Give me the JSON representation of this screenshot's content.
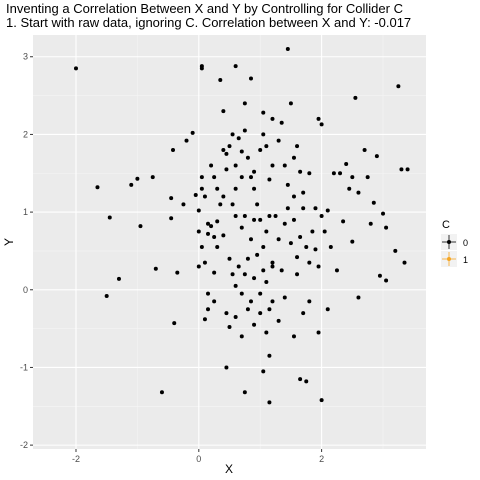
{
  "chart_data": {
    "type": "scatter",
    "title": "Inventing a Correlation Between X and Y by Controlling for Collider C",
    "subtitle": "1. Start with raw data, ignoring C. Correlation between X and Y: -0.017",
    "xlabel": "X",
    "ylabel": "Y",
    "xlim": [
      -2.7,
      3.7
    ],
    "ylim": [
      -2.05,
      3.28
    ],
    "x_ticks": [
      -2,
      0,
      2
    ],
    "y_ticks": [
      -2,
      -1,
      0,
      1,
      2,
      3
    ],
    "grid": true,
    "legend": {
      "title": "C",
      "position": "right",
      "items": [
        {
          "label": "0",
          "color": "#000000"
        },
        {
          "label": "1",
          "color": "#f5a623"
        }
      ]
    },
    "series": [
      {
        "color": "#000000",
        "points": [
          [
            -2.0,
            2.85
          ],
          [
            -1.65,
            1.32
          ],
          [
            -1.5,
            -0.08
          ],
          [
            -1.45,
            0.93
          ],
          [
            -1.3,
            0.14
          ],
          [
            -1.1,
            1.35
          ],
          [
            -1.0,
            1.43
          ],
          [
            -0.95,
            0.82
          ],
          [
            -0.75,
            1.45
          ],
          [
            -0.7,
            0.27
          ],
          [
            -0.6,
            -1.32
          ],
          [
            -0.45,
            0.92
          ],
          [
            -0.45,
            1.18
          ],
          [
            -0.42,
            1.8
          ],
          [
            -0.4,
            -0.43
          ],
          [
            -0.35,
            0.22
          ],
          [
            -0.25,
            1.1
          ],
          [
            -0.2,
            1.92
          ],
          [
            -0.1,
            2.02
          ],
          [
            -0.05,
            1.22
          ],
          [
            0.05,
            2.85
          ],
          [
            0.05,
            2.88
          ],
          [
            0.05,
            1.3
          ],
          [
            0.1,
            0.35
          ],
          [
            0.05,
            0.55
          ],
          [
            0.0,
            1.02
          ],
          [
            0.0,
            0.75
          ],
          [
            0.0,
            0.3
          ],
          [
            0.05,
            1.45
          ],
          [
            0.1,
            1.2
          ],
          [
            0.15,
            0.85
          ],
          [
            0.2,
            0.82
          ],
          [
            0.25,
            0.68
          ],
          [
            0.15,
            -0.05
          ],
          [
            0.1,
            -0.38
          ],
          [
            0.15,
            -0.25
          ],
          [
            0.25,
            -0.15
          ],
          [
            0.25,
            0.22
          ],
          [
            0.3,
            0.88
          ],
          [
            0.35,
            1.1
          ],
          [
            0.4,
            1.8
          ],
          [
            0.45,
            1.75
          ],
          [
            0.45,
            1.55
          ],
          [
            0.5,
            1.85
          ],
          [
            0.55,
            2.0
          ],
          [
            0.6,
            1.6
          ],
          [
            0.65,
            1.95
          ],
          [
            0.7,
            1.78
          ],
          [
            0.75,
            2.05
          ],
          [
            0.8,
            1.7
          ],
          [
            0.85,
            1.45
          ],
          [
            0.9,
            1.52
          ],
          [
            0.9,
            1.3
          ],
          [
            1.0,
            1.8
          ],
          [
            1.05,
            2.0
          ],
          [
            1.1,
            1.85
          ],
          [
            1.15,
            1.42
          ],
          [
            1.2,
            1.6
          ],
          [
            1.3,
            1.92
          ],
          [
            1.35,
            2.15
          ],
          [
            1.4,
            1.6
          ],
          [
            1.45,
            1.35
          ],
          [
            1.5,
            2.4
          ],
          [
            1.55,
            1.2
          ],
          [
            1.6,
            1.85
          ],
          [
            1.65,
            1.52
          ],
          [
            1.7,
            1.25
          ],
          [
            1.8,
            0.35
          ],
          [
            1.9,
            0.52
          ],
          [
            1.95,
            2.2
          ],
          [
            2.0,
            2.13
          ],
          [
            2.05,
            0.75
          ],
          [
            2.1,
            1.02
          ],
          [
            2.15,
            0.55
          ],
          [
            2.2,
            1.5
          ],
          [
            2.3,
            1.5
          ],
          [
            2.4,
            1.62
          ],
          [
            2.45,
            1.3
          ],
          [
            2.5,
            1.45
          ],
          [
            2.55,
            2.47
          ],
          [
            2.6,
            1.25
          ],
          [
            2.7,
            1.8
          ],
          [
            2.75,
            1.45
          ],
          [
            2.8,
            0.85
          ],
          [
            2.85,
            1.12
          ],
          [
            2.9,
            1.72
          ],
          [
            2.95,
            0.18
          ],
          [
            3.0,
            0.98
          ],
          [
            3.05,
            0.12
          ],
          [
            3.05,
            0.8
          ],
          [
            3.2,
            0.5
          ],
          [
            3.25,
            2.62
          ],
          [
            3.3,
            1.55
          ],
          [
            3.35,
            0.35
          ],
          [
            3.4,
            1.55
          ],
          [
            0.35,
            2.7
          ],
          [
            0.6,
            2.88
          ],
          [
            0.85,
            2.72
          ],
          [
            1.05,
            2.28
          ],
          [
            1.45,
            3.1
          ],
          [
            0.4,
            2.3
          ],
          [
            0.75,
            2.4
          ],
          [
            1.2,
            2.2
          ],
          [
            0.55,
            1.1
          ],
          [
            0.6,
            0.95
          ],
          [
            0.7,
            0.8
          ],
          [
            0.75,
            0.95
          ],
          [
            0.85,
            0.65
          ],
          [
            0.9,
            0.9
          ],
          [
            0.95,
            1.1
          ],
          [
            1.0,
            0.9
          ],
          [
            1.05,
            0.55
          ],
          [
            1.1,
            0.75
          ],
          [
            1.15,
            0.95
          ],
          [
            1.2,
            0.3
          ],
          [
            1.25,
            0.95
          ],
          [
            1.3,
            0.65
          ],
          [
            1.35,
            0.25
          ],
          [
            1.4,
            0.85
          ],
          [
            1.45,
            1.05
          ],
          [
            1.5,
            0.6
          ],
          [
            1.55,
            0.9
          ],
          [
            1.6,
            0.42
          ],
          [
            1.65,
            0.68
          ],
          [
            1.7,
            1.05
          ],
          [
            0.5,
            0.4
          ],
          [
            0.55,
            0.2
          ],
          [
            0.6,
            0.05
          ],
          [
            0.65,
            0.3
          ],
          [
            0.7,
            -0.05
          ],
          [
            0.75,
            0.2
          ],
          [
            0.8,
            0.4
          ],
          [
            0.85,
            -0.15
          ],
          [
            0.9,
            0.15
          ],
          [
            0.95,
            0.45
          ],
          [
            1.0,
            -0.05
          ],
          [
            1.05,
            0.25
          ],
          [
            1.1,
            0.1
          ],
          [
            1.15,
            -0.25
          ],
          [
            1.2,
            0.35
          ],
          [
            0.45,
            -0.3
          ],
          [
            0.5,
            -0.48
          ],
          [
            0.6,
            -0.35
          ],
          [
            0.7,
            -0.6
          ],
          [
            0.8,
            -0.25
          ],
          [
            0.9,
            -0.45
          ],
          [
            1.0,
            -0.3
          ],
          [
            1.1,
            -0.55
          ],
          [
            1.2,
            -0.15
          ],
          [
            1.3,
            -0.4
          ],
          [
            1.4,
            -0.1
          ],
          [
            1.55,
            -0.6
          ],
          [
            1.7,
            -0.3
          ],
          [
            1.8,
            -0.15
          ],
          [
            1.95,
            -0.55
          ],
          [
            0.45,
            -1.0
          ],
          [
            0.75,
            -1.32
          ],
          [
            1.05,
            -1.05
          ],
          [
            1.15,
            -0.85
          ],
          [
            1.65,
            -1.15
          ],
          [
            1.75,
            -1.18
          ],
          [
            1.15,
            -1.45
          ],
          [
            2.0,
            -1.42
          ],
          [
            2.6,
            -0.1
          ],
          [
            2.25,
            0.25
          ],
          [
            0.3,
            1.3
          ],
          [
            0.4,
            1.2
          ],
          [
            0.2,
            1.6
          ],
          [
            0.25,
            1.45
          ],
          [
            0.6,
            1.3
          ],
          [
            0.7,
            1.45
          ],
          [
            0.15,
            0.72
          ],
          [
            0.3,
            0.55
          ],
          [
            0.4,
            0.7
          ],
          [
            1.55,
            1.7
          ],
          [
            1.8,
            1.5
          ],
          [
            1.9,
            1.05
          ],
          [
            2.0,
            0.95
          ],
          [
            2.35,
            0.88
          ],
          [
            2.5,
            0.62
          ],
          [
            1.85,
            0.75
          ],
          [
            1.95,
            0.3
          ],
          [
            1.75,
            0.55
          ],
          [
            1.6,
            0.2
          ],
          [
            2.1,
            -0.25
          ]
        ]
      }
    ]
  }
}
